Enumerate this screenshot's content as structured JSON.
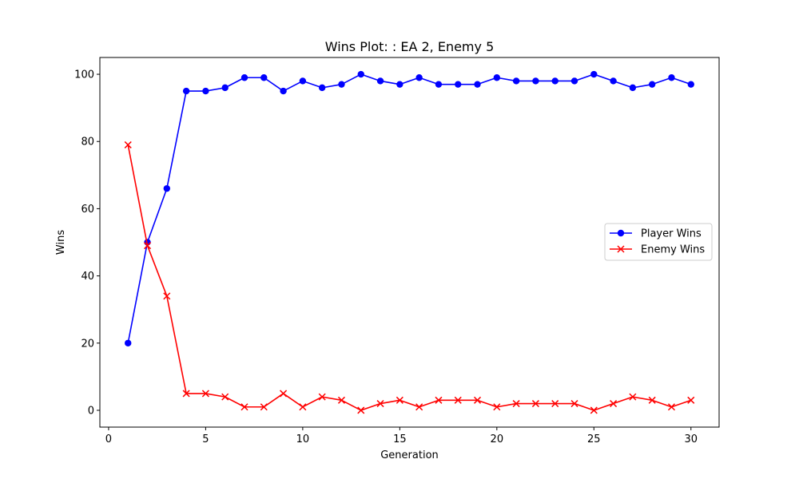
{
  "chart_data": {
    "type": "line",
    "title": "Wins Plot: : EA 2, Enemy 5",
    "xlabel": "Generation",
    "ylabel": "Wins",
    "xlim": [
      -0.45,
      31.45
    ],
    "ylim": [
      -5,
      105
    ],
    "xticks": [
      0,
      5,
      10,
      15,
      20,
      25,
      30
    ],
    "yticks": [
      0,
      20,
      40,
      60,
      80,
      100
    ],
    "grid": false,
    "legend_position": "center-right",
    "x": [
      1,
      2,
      3,
      4,
      5,
      6,
      7,
      8,
      9,
      10,
      11,
      12,
      13,
      14,
      15,
      16,
      17,
      18,
      19,
      20,
      21,
      22,
      23,
      24,
      25,
      26,
      27,
      28,
      29,
      30
    ],
    "series": [
      {
        "name": "Player Wins",
        "color": "#0000ff",
        "marker": "circle",
        "values": [
          20,
          50,
          66,
          95,
          95,
          96,
          99,
          99,
          95,
          98,
          96,
          97,
          100,
          98,
          97,
          99,
          97,
          97,
          97,
          99,
          98,
          98,
          98,
          98,
          100,
          98,
          96,
          97,
          99,
          97
        ]
      },
      {
        "name": "Enemy Wins",
        "color": "#ff0000",
        "marker": "x",
        "values": [
          79,
          49,
          34,
          5,
          5,
          4,
          1,
          1,
          5,
          1,
          4,
          3,
          0,
          2,
          3,
          1,
          3,
          3,
          3,
          1,
          2,
          2,
          2,
          2,
          0,
          2,
          4,
          3,
          1,
          3
        ]
      }
    ]
  }
}
